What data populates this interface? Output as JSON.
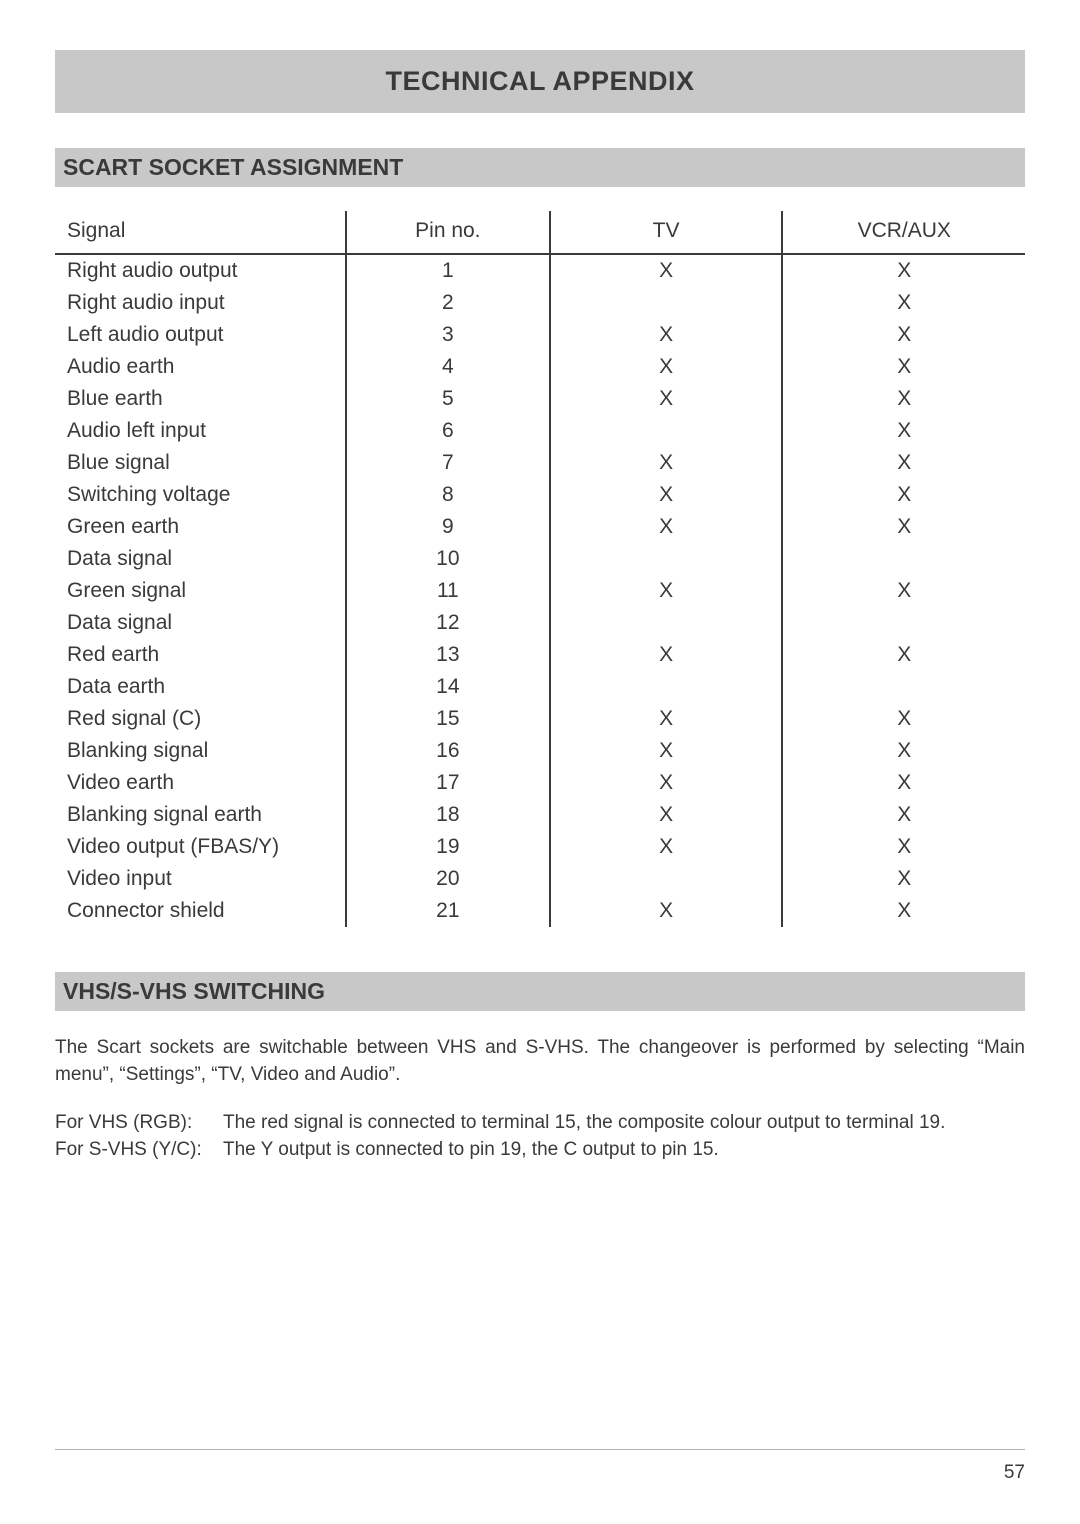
{
  "main_title": "TECHNICAL APPENDIX",
  "section1_title": "SCART SOCKET ASSIGNMENT",
  "section2_title": "VHS/S-VHS SWITCHING",
  "table": {
    "columns": [
      "Signal",
      "Pin no.",
      "TV",
      "VCR/AUX"
    ],
    "rows": [
      [
        "Right audio output",
        "1",
        "X",
        "X"
      ],
      [
        "Right audio input",
        "2",
        "",
        "X"
      ],
      [
        "Left audio output",
        "3",
        "X",
        "X"
      ],
      [
        "Audio earth",
        "4",
        "X",
        "X"
      ],
      [
        "Blue earth",
        "5",
        "X",
        "X"
      ],
      [
        "Audio left input",
        "6",
        "",
        "X"
      ],
      [
        "Blue signal",
        "7",
        "X",
        "X"
      ],
      [
        "Switching voltage",
        "8",
        "X",
        "X"
      ],
      [
        "Green earth",
        "9",
        "X",
        "X"
      ],
      [
        "Data signal",
        "10",
        "",
        ""
      ],
      [
        "Green signal",
        "11",
        "X",
        "X"
      ],
      [
        "Data signal",
        "12",
        "",
        ""
      ],
      [
        "Red earth",
        "13",
        "X",
        "X"
      ],
      [
        "Data earth",
        "14",
        "",
        ""
      ],
      [
        "Red signal (C)",
        "15",
        "X",
        "X"
      ],
      [
        "Blanking signal",
        "16",
        "X",
        "X"
      ],
      [
        "Video earth",
        "17",
        "X",
        "X"
      ],
      [
        "Blanking signal earth",
        "18",
        "X",
        "X"
      ],
      [
        "Video output (FBAS/Y)",
        "19",
        "X",
        "X"
      ],
      [
        "Video input",
        "20",
        "",
        "X"
      ],
      [
        "Connector shield",
        "21",
        "X",
        "X"
      ]
    ]
  },
  "paragraph1": "The Scart sockets are switchable between VHS and S-VHS. The changeover is performed by selecting “Main menu”, “Settings”, “TV, Video and Audio”.",
  "mode1_label": "For VHS (RGB):",
  "mode1_text": "The red signal is connected to terminal 15, the composite colour output to terminal 19.",
  "mode2_label": "For S-VHS (Y/C):",
  "mode2_text": "The Y output is connected to pin 19, the C output to pin 15.",
  "page_number": "57",
  "colors": {
    "section_bg": "#c8c8c8",
    "text": "#3a3a3a",
    "border": "#3a3a3a",
    "footer_rule": "#b0b0b0",
    "background": "#ffffff"
  }
}
